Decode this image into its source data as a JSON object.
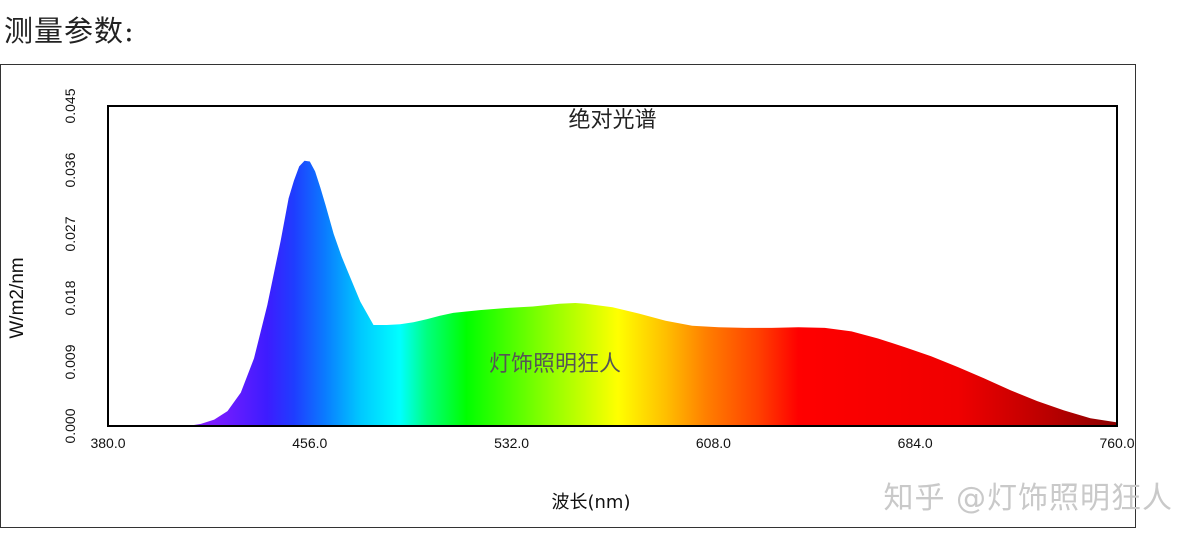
{
  "page": {
    "heading": "测量参数:"
  },
  "watermark": "知乎 @灯饰照明狂人",
  "chart_data": {
    "type": "area",
    "title": "绝对光谱",
    "overlay_text": "灯饰照明狂人",
    "xlabel": "波长(nm)",
    "ylabel": "W/m2/nm",
    "xlim": [
      380,
      760
    ],
    "ylim": [
      0,
      0.045
    ],
    "xticks": [
      "380.0",
      "456.0",
      "532.0",
      "608.0",
      "684.0",
      "760.0"
    ],
    "yticks": [
      "0.000",
      "0.009",
      "0.018",
      "0.027",
      "0.036",
      "0.045"
    ],
    "grid": false,
    "fill": "wavelength-color gradient",
    "series": [
      {
        "x": [
          380,
          390,
          400,
          410,
          415,
          420,
          425,
          430,
          435,
          440,
          445,
          448,
          450,
          452,
          454,
          456,
          458,
          460,
          462,
          465,
          468,
          470,
          475,
          480,
          485,
          490,
          495,
          500,
          505,
          510,
          520,
          530,
          540,
          550,
          556,
          560,
          570,
          580,
          590,
          600,
          610,
          620,
          630,
          640,
          650,
          660,
          670,
          680,
          690,
          700,
          710,
          720,
          730,
          740,
          750,
          760
        ],
        "y": [
          0,
          0,
          0,
          0,
          0.0003,
          0.0009,
          0.0021,
          0.0047,
          0.0095,
          0.017,
          0.026,
          0.032,
          0.0345,
          0.0365,
          0.0373,
          0.0372,
          0.0358,
          0.0335,
          0.031,
          0.027,
          0.0238,
          0.022,
          0.0175,
          0.0142,
          0.0142,
          0.0143,
          0.0146,
          0.015,
          0.0155,
          0.0159,
          0.0163,
          0.0166,
          0.0168,
          0.0172,
          0.0173,
          0.0172,
          0.0167,
          0.0158,
          0.0148,
          0.0141,
          0.0139,
          0.0138,
          0.0138,
          0.0139,
          0.0138,
          0.0133,
          0.0123,
          0.0111,
          0.0098,
          0.0083,
          0.0067,
          0.005,
          0.0035,
          0.0022,
          0.0011,
          0.0005
        ]
      }
    ]
  }
}
